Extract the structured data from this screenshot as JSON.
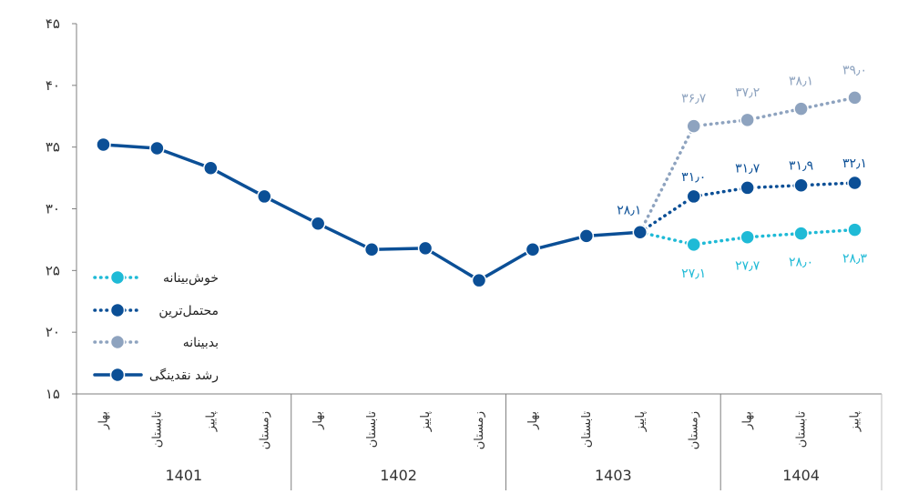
{
  "chart_data": {
    "type": "line",
    "y_axis": {
      "range": [
        15,
        45
      ],
      "ticks": [
        15,
        20,
        25,
        30,
        35,
        40,
        45
      ],
      "tick_labels": [
        "۱۵",
        "۲۰",
        "۲۵",
        "۳۰",
        "۳۵",
        "۴۰",
        "۴۵"
      ]
    },
    "x_axis": {
      "season_labels": [
        "بهار",
        "تابستان",
        "پاییز",
        "زمستان",
        "بهار",
        "تابستان",
        "پاییز",
        "زمستان",
        "بهار",
        "تابستان",
        "پاییز",
        "زمستان",
        "بهار",
        "تابستان",
        "پاییز"
      ],
      "years": [
        {
          "label": "1401",
          "start": 0,
          "end": 3
        },
        {
          "label": "1402",
          "start": 4,
          "end": 7
        },
        {
          "label": "1403",
          "start": 8,
          "end": 11
        },
        {
          "label": "1404",
          "start": 12,
          "end": 14
        }
      ]
    },
    "series": [
      {
        "name": "رشد نقدینگی",
        "style": "solid",
        "color": "#0b4f96",
        "x_index": [
          0,
          1,
          2,
          3,
          4,
          5,
          6,
          7,
          8,
          9,
          10
        ],
        "values": [
          35.2,
          34.9,
          33.3,
          31.0,
          28.8,
          26.7,
          26.8,
          24.2,
          26.7,
          27.8,
          28.1
        ],
        "labels": []
      },
      {
        "name": "خوش‌بینانه",
        "style": "dotted",
        "color": "#1fbad6",
        "x_index": [
          10,
          11,
          12,
          13,
          14
        ],
        "values": [
          28.1,
          27.1,
          27.7,
          28.0,
          28.3
        ],
        "labels": [
          "",
          "۲۷٫۱",
          "۲۷٫۷",
          "۲۸٫۰",
          "۲۸٫۳"
        ]
      },
      {
        "name": "محتمل‌ترین",
        "style": "dotted",
        "color": "#0b4f96",
        "x_index": [
          10,
          11,
          12,
          13,
          14
        ],
        "values": [
          28.1,
          31.0,
          31.7,
          31.9,
          32.1
        ],
        "labels": [
          "۲۸٫۱",
          "۳۱٫۰",
          "۳۱٫۷",
          "۳۱٫۹",
          "۳۲٫۱"
        ]
      },
      {
        "name": "بدبینانه",
        "style": "dotted",
        "color": "#8ea3bf",
        "x_index": [
          10,
          11,
          12,
          13,
          14
        ],
        "values": [
          28.1,
          36.7,
          37.2,
          38.1,
          39.0
        ],
        "labels": [
          "",
          "۳۶٫۷",
          "۳۷٫۲",
          "۳۸٫۱",
          "۳۹٫۰"
        ]
      }
    ],
    "legend": {
      "placement": "left",
      "order": [
        "خوش‌بینانه",
        "محتمل‌ترین",
        "بدبینانه",
        "رشد نقدینگی"
      ]
    },
    "grid": false
  }
}
